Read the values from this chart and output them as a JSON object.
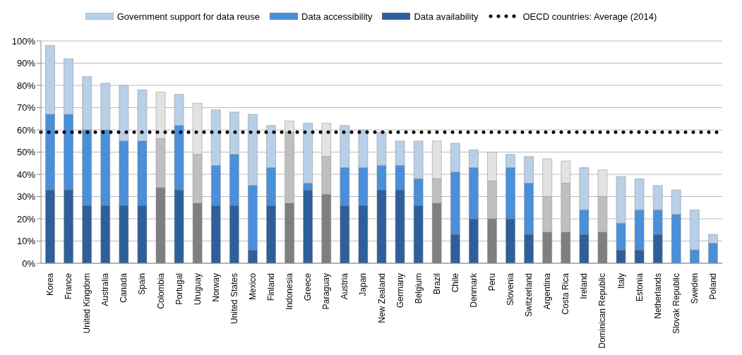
{
  "chart_data": {
    "type": "bar",
    "stacked": true,
    "legend": "top",
    "grid": "y",
    "line_style": "dotted",
    "categories": [
      "Korea",
      "France",
      "United Kingdom",
      "Australia",
      "Canada",
      "Spain",
      "Colombia",
      "Portugal",
      "Uruguay",
      "Norway",
      "United States",
      "Mexico",
      "Finland",
      "Indonesia",
      "Greece",
      "Paraguay",
      "Austria",
      "Japan",
      "New Zealand",
      "Germany",
      "Belgium",
      "Brazil",
      "Chile",
      "Denmark",
      "Peru",
      "Slovenia",
      "Switzerland",
      "Argentina",
      "Costa Rica",
      "Ireland",
      "Dominican Republic",
      "Italy",
      "Estonia",
      "Netherlands",
      "Slovak Republic",
      "Sweden",
      "Poland"
    ],
    "ylim": [
      0,
      100
    ],
    "yticks": [
      {
        "value": 0,
        "label": "0%"
      },
      {
        "value": 10,
        "label": "10%"
      },
      {
        "value": 20,
        "label": "20%"
      },
      {
        "value": 30,
        "label": "30%"
      },
      {
        "value": 40,
        "label": "40%"
      },
      {
        "value": 50,
        "label": "50%"
      },
      {
        "value": 60,
        "label": "60%"
      },
      {
        "value": 70,
        "label": "70%"
      },
      {
        "value": 80,
        "label": "80%"
      },
      {
        "value": 90,
        "label": "90%"
      },
      {
        "value": 100,
        "label": "100%"
      }
    ],
    "series": [
      {
        "name": "Data availability",
        "color": "#2e5f9a",
        "values": [
          33,
          33,
          26,
          26,
          26,
          26,
          34,
          33,
          27,
          26,
          26,
          6,
          26,
          27,
          33,
          31,
          26,
          26,
          33,
          33,
          26,
          27,
          13,
          20,
          20,
          20,
          13,
          14,
          14,
          13,
          14,
          6,
          6,
          13,
          0,
          0,
          0
        ],
        "colors": [
          "#2e5f9a",
          "#2e5f9a",
          "#2e5f9a",
          "#2e5f9a",
          "#2e5f9a",
          "#2e5f9a",
          "#7f7f7f",
          "#2e5f9a",
          "#7f7f7f",
          "#2e5f9a",
          "#2e5f9a",
          "#2e5f9a",
          "#2e5f9a",
          "#7f7f7f",
          "#2e5f9a",
          "#7f7f7f",
          "#2e5f9a",
          "#2e5f9a",
          "#2e5f9a",
          "#2e5f9a",
          "#2e5f9a",
          "#7f7f7f",
          "#2e5f9a",
          "#2e5f9a",
          "#7f7f7f",
          "#2e5f9a",
          "#2e5f9a",
          "#7f7f7f",
          "#7f7f7f",
          "#2e5f9a",
          "#7f7f7f",
          "#2e5f9a",
          "#2e5f9a",
          "#2e5f9a",
          "#2e5f9a",
          "#2e5f9a",
          "#2e5f9a"
        ]
      },
      {
        "name": "Data accessibility",
        "color": "#4a8fd9",
        "values": [
          34,
          34,
          34,
          34,
          29,
          29,
          22,
          29,
          22,
          18,
          23,
          29,
          17,
          32,
          3,
          17,
          17,
          17,
          11,
          11,
          12,
          11,
          28,
          23,
          17,
          23,
          23,
          16,
          22,
          11,
          16,
          12,
          18,
          11,
          22,
          6,
          9
        ],
        "colors": [
          "#4a8fd9",
          "#4a8fd9",
          "#4a8fd9",
          "#4a8fd9",
          "#4a8fd9",
          "#4a8fd9",
          "#bfbfbf",
          "#4a8fd9",
          "#bfbfbf",
          "#4a8fd9",
          "#4a8fd9",
          "#4a8fd9",
          "#4a8fd9",
          "#bfbfbf",
          "#4a8fd9",
          "#bfbfbf",
          "#4a8fd9",
          "#4a8fd9",
          "#4a8fd9",
          "#4a8fd9",
          "#4a8fd9",
          "#bfbfbf",
          "#4a8fd9",
          "#4a8fd9",
          "#bfbfbf",
          "#4a8fd9",
          "#4a8fd9",
          "#bfbfbf",
          "#bfbfbf",
          "#4a8fd9",
          "#bfbfbf",
          "#4a8fd9",
          "#4a8fd9",
          "#4a8fd9",
          "#4a8fd9",
          "#4a8fd9",
          "#4a8fd9"
        ]
      },
      {
        "name": "Government support for data reuse",
        "color": "#b8cfe8",
        "values": [
          31,
          25,
          24,
          21,
          25,
          23,
          21,
          14,
          23,
          25,
          19,
          32,
          19,
          5,
          27,
          15,
          19,
          17,
          15,
          11,
          17,
          17,
          13,
          8,
          13,
          6,
          12,
          17,
          10,
          19,
          12,
          21,
          14,
          11,
          11,
          18,
          4
        ],
        "colors": [
          "#b8cfe8",
          "#b8cfe8",
          "#b8cfe8",
          "#b8cfe8",
          "#b8cfe8",
          "#b8cfe8",
          "#e2e2e2",
          "#b8cfe8",
          "#e2e2e2",
          "#b8cfe8",
          "#b8cfe8",
          "#b8cfe8",
          "#b8cfe8",
          "#e2e2e2",
          "#b8cfe8",
          "#e2e2e2",
          "#b8cfe8",
          "#b8cfe8",
          "#b8cfe8",
          "#b8cfe8",
          "#b8cfe8",
          "#e2e2e2",
          "#b8cfe8",
          "#b8cfe8",
          "#e2e2e2",
          "#b8cfe8",
          "#b8cfe8",
          "#e2e2e2",
          "#e2e2e2",
          "#b8cfe8",
          "#e2e2e2",
          "#b8cfe8",
          "#b8cfe8",
          "#b8cfe8",
          "#b8cfe8",
          "#b8cfe8",
          "#b8cfe8"
        ]
      }
    ],
    "ref_lines": [
      {
        "axis": "y",
        "value": 59,
        "label": "OECD countries: Average (2014)",
        "color": "#000000"
      }
    ]
  }
}
